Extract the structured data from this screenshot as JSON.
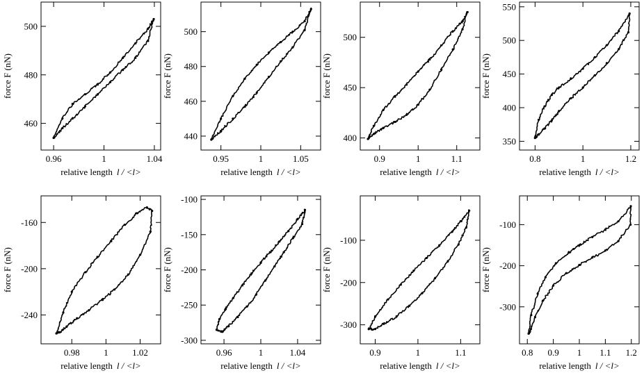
{
  "chart_data": [
    {
      "type": "line",
      "xlabel_prefix": "relative length",
      "xlabel_var": "l / <l>",
      "ylabel": "force F (nN)",
      "xlim": [
        0.95,
        1.045
      ],
      "ylim": [
        449,
        510
      ],
      "xticks": [
        0.96,
        1,
        1.04
      ],
      "xtick_labels": [
        "0.96",
        "1",
        "1.04"
      ],
      "yticks": [
        460,
        480,
        500
      ],
      "ytick_labels": [
        "460",
        "480",
        "500"
      ],
      "series": [
        {
          "x": [
            0.96,
            0.967,
            0.975,
            0.985,
            0.995,
            1.005,
            1.015,
            1.025,
            1.035,
            1.0395,
            1.035,
            1.025,
            1.015,
            1.005,
            0.995,
            0.985,
            0.975,
            0.967,
            0.96
          ],
          "y": [
            454,
            462,
            468,
            472,
            476,
            481,
            487,
            493,
            499,
            503,
            494,
            487,
            482,
            477,
            472,
            467,
            462,
            458,
            454
          ]
        }
      ]
    },
    {
      "type": "line",
      "xlabel_prefix": "relative length",
      "xlabel_var": "l / <l>",
      "ylabel": "force F (nN)",
      "xlim": [
        0.925,
        1.075
      ],
      "ylim": [
        432,
        517
      ],
      "xticks": [
        0.95,
        1,
        1.05
      ],
      "xtick_labels": [
        "0.95",
        "1",
        "1.05"
      ],
      "yticks": [
        440,
        460,
        480,
        500
      ],
      "ytick_labels": [
        "440",
        "460",
        "480",
        "500"
      ],
      "series": [
        {
          "x": [
            0.938,
            0.95,
            0.965,
            0.98,
            0.995,
            1.01,
            1.025,
            1.04,
            1.055,
            1.063,
            1.055,
            1.04,
            1.025,
            1.01,
            0.995,
            0.98,
            0.965,
            0.95,
            0.938
          ],
          "y": [
            438,
            450,
            463,
            473,
            481,
            488,
            494,
            500,
            506,
            513,
            501,
            491,
            483,
            474,
            465,
            457,
            450,
            443,
            438
          ]
        }
      ]
    },
    {
      "type": "line",
      "xlabel_prefix": "relative length",
      "xlabel_var": "l / <l>",
      "ylabel": "force F (nN)",
      "xlim": [
        0.85,
        1.16
      ],
      "ylim": [
        388,
        535
      ],
      "xticks": [
        0.9,
        1,
        1.1
      ],
      "xtick_labels": [
        "0.9",
        "1",
        "1.1"
      ],
      "yticks": [
        400,
        450,
        500
      ],
      "ytick_labels": [
        "400",
        "450",
        "500"
      ],
      "series": [
        {
          "x": [
            0.87,
            0.885,
            0.91,
            0.94,
            0.97,
            1.0,
            1.03,
            1.06,
            1.09,
            1.115,
            1.128,
            1.115,
            1.09,
            1.06,
            1.03,
            1.0,
            0.97,
            0.94,
            0.91,
            0.885,
            0.87
          ],
          "y": [
            399,
            412,
            428,
            441,
            453,
            466,
            478,
            492,
            506,
            516,
            525,
            508,
            488,
            468,
            448,
            433,
            423,
            416,
            410,
            404,
            399
          ]
        }
      ]
    },
    {
      "type": "line",
      "xlabel_prefix": "relative length",
      "xlabel_var": "l / <l>",
      "ylabel": "force F (nN)",
      "xlim": [
        0.735,
        1.235
      ],
      "ylim": [
        337,
        557
      ],
      "xticks": [
        0.8,
        1,
        1.2
      ],
      "xtick_labels": [
        "0.8",
        "1",
        "1.2"
      ],
      "yticks": [
        350,
        400,
        450,
        500,
        550
      ],
      "ytick_labels": [
        "350",
        "400",
        "450",
        "500",
        "550"
      ],
      "series": [
        {
          "x": [
            0.8,
            0.815,
            0.84,
            0.87,
            0.9,
            0.95,
            1.0,
            1.05,
            1.1,
            1.15,
            1.195,
            1.19,
            1.15,
            1.1,
            1.05,
            1.0,
            0.95,
            0.9,
            0.87,
            0.84,
            0.815,
            0.8
          ],
          "y": [
            355,
            382,
            402,
            419,
            430,
            443,
            458,
            475,
            493,
            514,
            540,
            512,
            487,
            466,
            448,
            430,
            414,
            395,
            381,
            369,
            360,
            355
          ]
        }
      ]
    },
    {
      "type": "line",
      "xlabel_prefix": "relative length",
      "xlabel_var": "l / <l>",
      "ylabel": "force F (nN)",
      "xlim": [
        0.962,
        1.032
      ],
      "ylim": [
        -265,
        -137
      ],
      "xticks": [
        0.98,
        1,
        1.02
      ],
      "xtick_labels": [
        "0.98",
        "1",
        "1.02"
      ],
      "yticks": [
        -240,
        -200,
        -160
      ],
      "ytick_labels": [
        "-240",
        "-200",
        "-160"
      ],
      "series": [
        {
          "x": [
            0.971,
            0.975,
            0.98,
            0.988,
            0.995,
            1.003,
            1.011,
            1.018,
            1.024,
            1.027,
            1.026,
            1.02,
            1.013,
            1.005,
            0.998,
            0.99,
            0.983,
            0.977,
            0.973,
            0.971
          ],
          "y": [
            -256,
            -238,
            -220,
            -203,
            -190,
            -176,
            -162,
            -152,
            -147,
            -150,
            -168,
            -188,
            -205,
            -218,
            -227,
            -236,
            -243,
            -250,
            -255,
            -256
          ]
        }
      ]
    },
    {
      "type": "line",
      "xlabel_prefix": "relative length",
      "xlabel_var": "l / <l>",
      "ylabel": "force F (nN)",
      "xlim": [
        0.935,
        1.065
      ],
      "ylim": [
        -305,
        -95
      ],
      "xticks": [
        0.96,
        1,
        1.04
      ],
      "xtick_labels": [
        "0.96",
        "1",
        "1.04"
      ],
      "yticks": [
        -300,
        -250,
        -200,
        -150,
        -100
      ],
      "ytick_labels": [
        "-300",
        "-250",
        "-200",
        "-150",
        "-100"
      ],
      "series": [
        {
          "x": [
            0.952,
            0.955,
            0.962,
            0.97,
            0.98,
            0.99,
            1.0,
            1.01,
            1.02,
            1.03,
            1.04,
            1.048,
            1.045,
            1.035,
            1.025,
            1.015,
            1.005,
            0.995,
            0.985,
            0.975,
            0.965,
            0.958,
            0.952
          ],
          "y": [
            -285,
            -270,
            -255,
            -240,
            -222,
            -205,
            -190,
            -175,
            -160,
            -145,
            -128,
            -115,
            -135,
            -155,
            -175,
            -195,
            -215,
            -235,
            -252,
            -267,
            -280,
            -288,
            -285
          ]
        }
      ]
    },
    {
      "type": "line",
      "xlabel_prefix": "relative length",
      "xlabel_var": "l / <l>",
      "ylabel": "force F (nN)",
      "xlim": [
        0.865,
        1.145
      ],
      "ylim": [
        -345,
        5
      ],
      "xticks": [
        0.9,
        1,
        1.1
      ],
      "xtick_labels": [
        "0.9",
        "1",
        "1.1"
      ],
      "yticks": [
        -300,
        -200,
        -100
      ],
      "ytick_labels": [
        "-300",
        "-200",
        "-100"
      ],
      "series": [
        {
          "x": [
            0.885,
            0.9,
            0.93,
            0.96,
            0.99,
            1.02,
            1.05,
            1.08,
            1.1,
            1.12,
            1.113,
            1.095,
            1.07,
            1.04,
            1.01,
            0.98,
            0.95,
            0.92,
            0.9,
            0.885
          ],
          "y": [
            -310,
            -280,
            -240,
            -205,
            -172,
            -142,
            -112,
            -80,
            -55,
            -30,
            -70,
            -110,
            -150,
            -190,
            -225,
            -255,
            -280,
            -298,
            -310,
            -310
          ]
        }
      ]
    },
    {
      "type": "line",
      "xlabel_prefix": "relative length",
      "xlabel_var": "l / <l>",
      "ylabel": "force F (nN)",
      "xlim": [
        0.77,
        1.23
      ],
      "ylim": [
        -390,
        -30
      ],
      "xticks": [
        0.8,
        0.9,
        1,
        1.1,
        1.2
      ],
      "xtick_labels": [
        "0.8",
        "0.9",
        "1",
        "1.1",
        "1.2"
      ],
      "yticks": [
        -300,
        -200,
        -100
      ],
      "ytick_labels": [
        "-300",
        "-200",
        "-100"
      ],
      "series": [
        {
          "x": [
            0.805,
            0.815,
            0.84,
            0.87,
            0.91,
            0.96,
            1.0,
            1.05,
            1.1,
            1.15,
            1.198,
            1.197,
            1.15,
            1.1,
            1.05,
            1.0,
            0.95,
            0.9,
            0.86,
            0.83,
            0.81,
            0.805
          ],
          "y": [
            -365,
            -320,
            -268,
            -228,
            -194,
            -168,
            -150,
            -130,
            -112,
            -92,
            -55,
            -100,
            -140,
            -163,
            -180,
            -198,
            -218,
            -248,
            -285,
            -325,
            -360,
            -365
          ]
        }
      ]
    }
  ]
}
